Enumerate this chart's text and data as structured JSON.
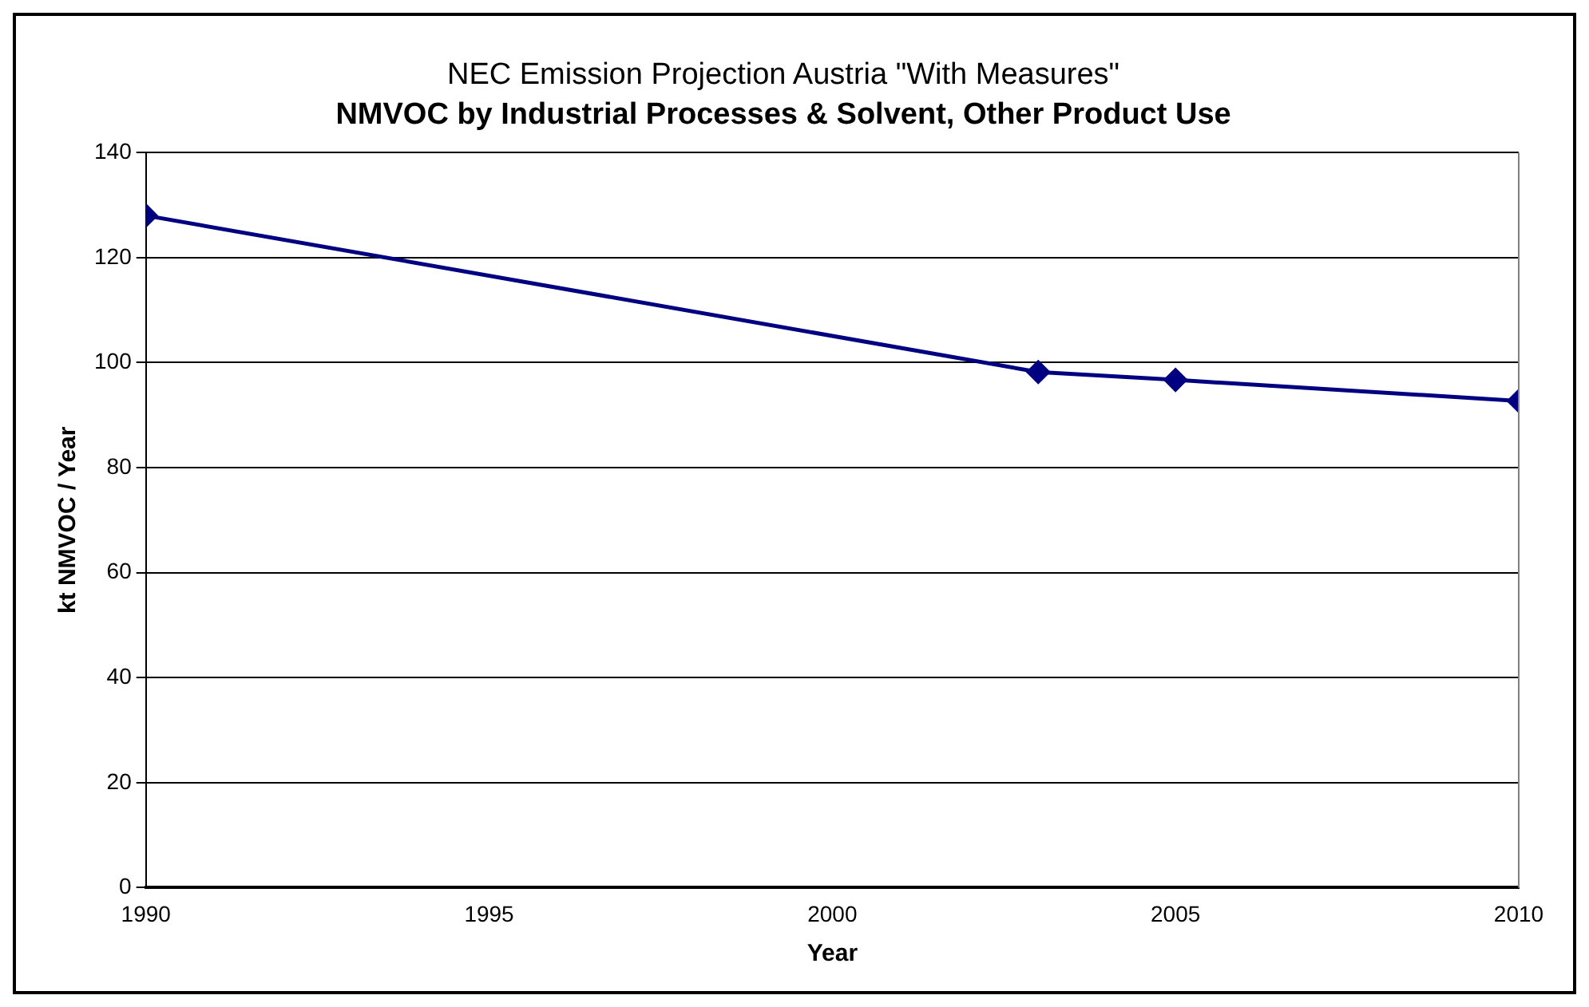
{
  "chart_data": {
    "type": "line",
    "title": "NEC Emission Projection Austria \"With Measures\"",
    "subtitle": "NMVOC by Industrial Processes & Solvent, Other Product Use",
    "xlabel": "Year",
    "ylabel": "kt NMVOC / Year",
    "x": [
      1990,
      2003,
      2005,
      2010
    ],
    "series": [
      {
        "color": "#000080",
        "values": [
          128,
          98.2,
          96.7,
          92.7
        ]
      }
    ],
    "xlim": [
      1990,
      2010
    ],
    "xticks": [
      1990,
      1995,
      2000,
      2005,
      2010
    ],
    "ylim": [
      0,
      140
    ],
    "yticks": [
      0,
      20,
      40,
      60,
      80,
      100,
      120,
      140
    ],
    "grid": "y",
    "legend": false,
    "marker": "diamond",
    "line_style": "solid"
  }
}
